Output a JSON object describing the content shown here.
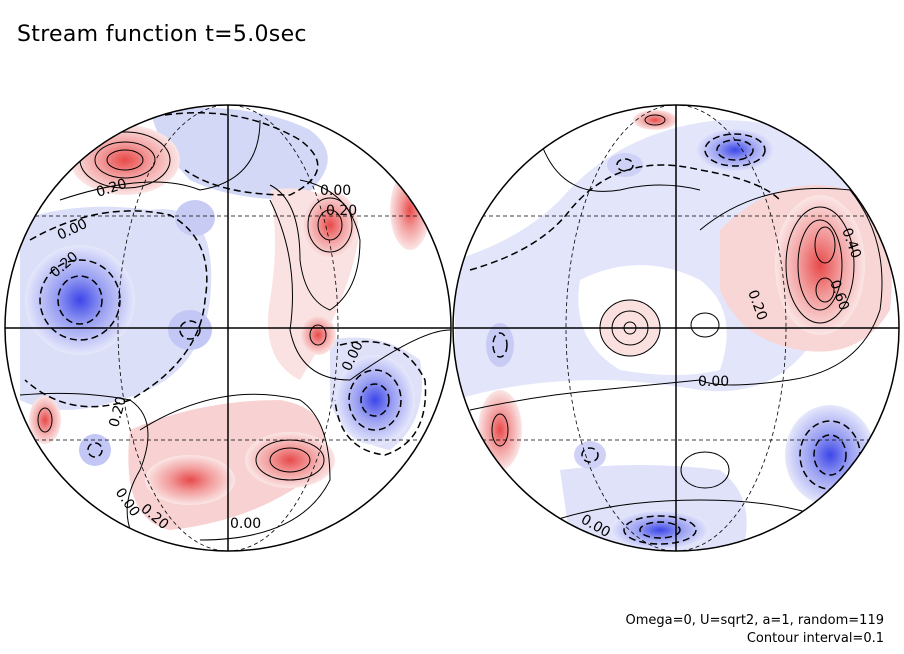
{
  "title": "Stream function t=5.0sec",
  "footer": {
    "line1": "Omega=0, U=sqrt2, a=1, random=119",
    "line2": "Contour interval=0.1"
  },
  "colors": {
    "positive": "#f08080",
    "negative": "#8c94f0",
    "background": "#ffffff",
    "line": "#000000"
  },
  "left_globe": {
    "labels": [
      "0.20",
      "0.00",
      "0.20",
      "0.20",
      "0.00",
      "0.20",
      "0.00",
      "0.00",
      "0.20",
      "0.00"
    ]
  },
  "right_globe": {
    "labels": [
      "0.40",
      "0.60",
      "0.20",
      "0.00",
      "0.00"
    ]
  }
}
